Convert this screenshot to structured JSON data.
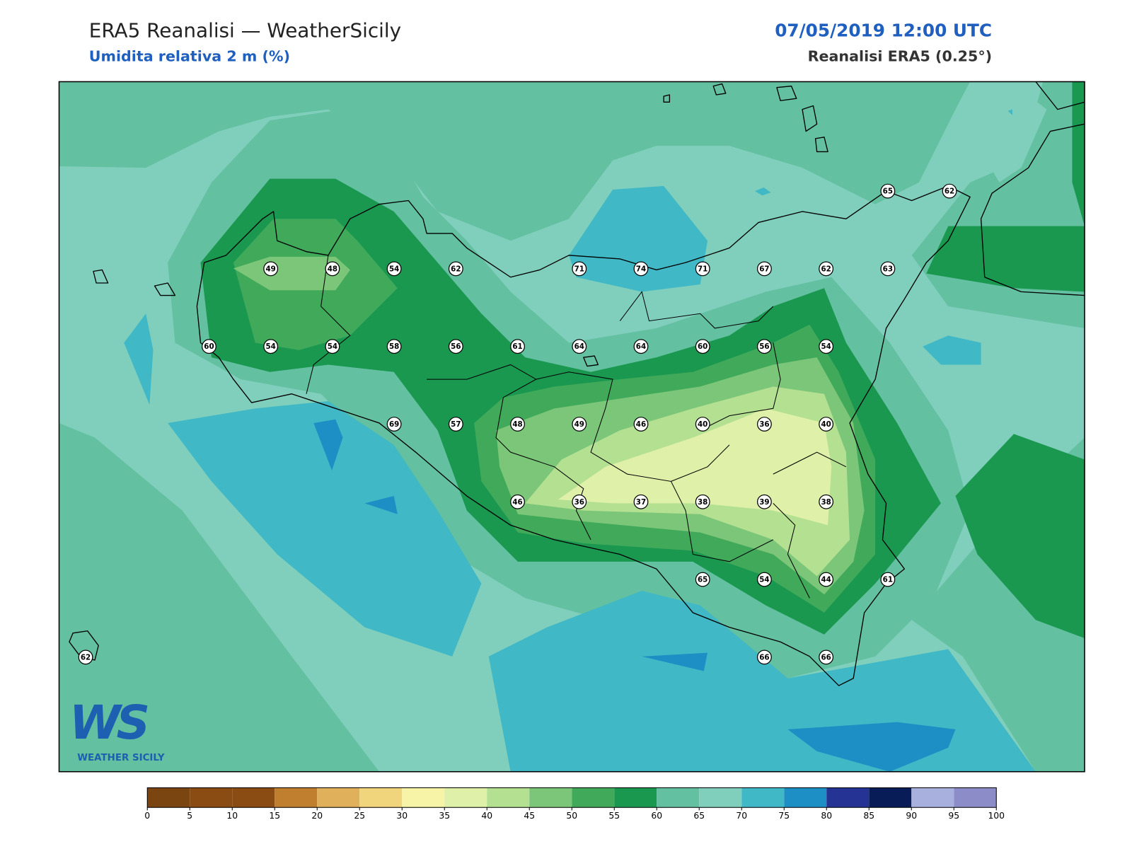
{
  "header": {
    "title": "ERA5 Reanalisi — WeatherSicily",
    "subtitle": "Umidita relativa 2 m (%)",
    "datetime": "07/05/2019 12:00 UTC",
    "source": "Reanalisi ERA5 (0.25°)"
  },
  "stations": {
    "rows": [
      [
        65,
        62
      ],
      [
        49,
        48,
        54,
        62,
        71,
        74,
        71,
        67,
        62,
        63
      ],
      [
        60,
        54,
        54,
        58,
        56,
        61,
        64,
        64,
        60,
        56,
        54
      ],
      [
        69,
        57,
        48,
        49,
        46,
        40,
        36,
        40
      ],
      [
        46,
        36,
        37,
        38,
        39,
        38
      ],
      [
        65,
        54,
        44,
        61
      ],
      [
        62,
        66,
        66
      ]
    ]
  },
  "logo": {
    "mark": "WS",
    "text": "WEATHER SICILY"
  },
  "colorbar": {
    "bounds": [
      0,
      5,
      10,
      15,
      20,
      25,
      30,
      35,
      40,
      45,
      50,
      55,
      60,
      65,
      70,
      75,
      80,
      85,
      90,
      95,
      100
    ],
    "colors": [
      "#7a4510",
      "#8b4c14",
      "#8b4c14",
      "#c07f2e",
      "#e0b05a",
      "#f0d57c",
      "#f7f4a8",
      "#dff0a8",
      "#b4e092",
      "#7cc67a",
      "#41a95a",
      "#1a9850",
      "#63c0a0",
      "#80cfbc",
      "#40b8c6",
      "#1d8fc4",
      "#253494",
      "#081d58",
      "#a8b0dd",
      "#8c8cc8"
    ]
  }
}
